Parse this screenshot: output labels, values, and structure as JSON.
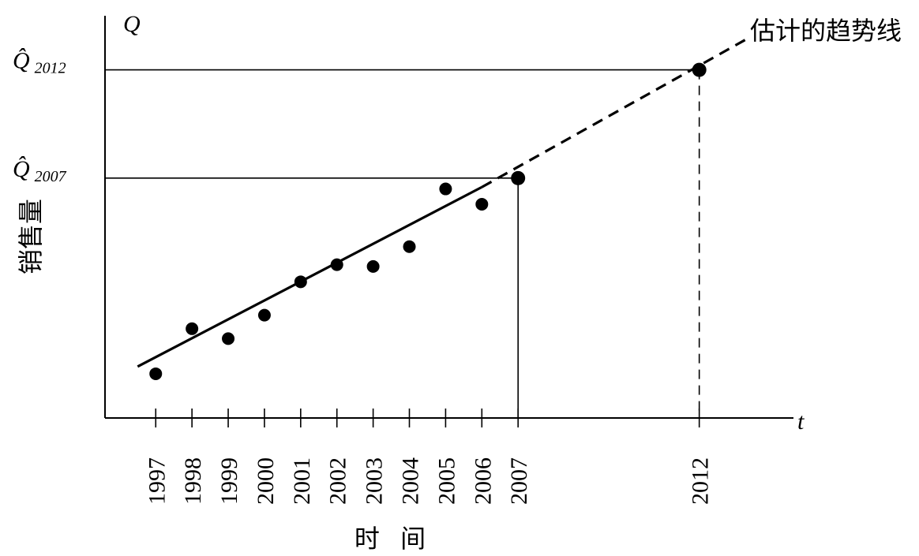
{
  "chart_data": {
    "type": "scatter",
    "title": "",
    "y_axis_symbol": "Q",
    "x_axis_symbol": "t",
    "xlabel": "时 间",
    "ylabel": "销售量",
    "trend_label": "估计的趋势线",
    "x_ticks": [
      "1997",
      "1998",
      "1999",
      "2000",
      "2001",
      "2002",
      "2003",
      "2004",
      "2005",
      "2006",
      "2007",
      "2012"
    ],
    "points": [
      {
        "x": 1997,
        "y": 0.65
      },
      {
        "x": 1998,
        "y": 3.15
      },
      {
        "x": 1999,
        "y": 2.6
      },
      {
        "x": 2000,
        "y": 3.9
      },
      {
        "x": 2001,
        "y": 5.75
      },
      {
        "x": 2002,
        "y": 6.7
      },
      {
        "x": 2003,
        "y": 6.6
      },
      {
        "x": 2004,
        "y": 7.7
      },
      {
        "x": 2005,
        "y": 10.9
      },
      {
        "x": 2006,
        "y": 10.05
      }
    ],
    "trend_solid": {
      "x": [
        1996.5,
        2006.0
      ],
      "y": [
        1.05,
        11.0
      ]
    },
    "trend_dashed": {
      "x": [
        2006.0,
        2013.3
      ],
      "y": [
        11.0,
        19.2
      ]
    },
    "forecast_points": [
      {
        "x": 2007,
        "y": 11.5,
        "label_main": "Q̂",
        "label_sub": "2007"
      },
      {
        "x": 2012,
        "y": 17.5,
        "label_main": "Q̂",
        "label_sub": "2012"
      }
    ],
    "xlim": [
      1995.6,
      2014.6
    ],
    "ylim": [
      -1.8,
      20.5
    ],
    "grid": false,
    "legend": "none"
  }
}
